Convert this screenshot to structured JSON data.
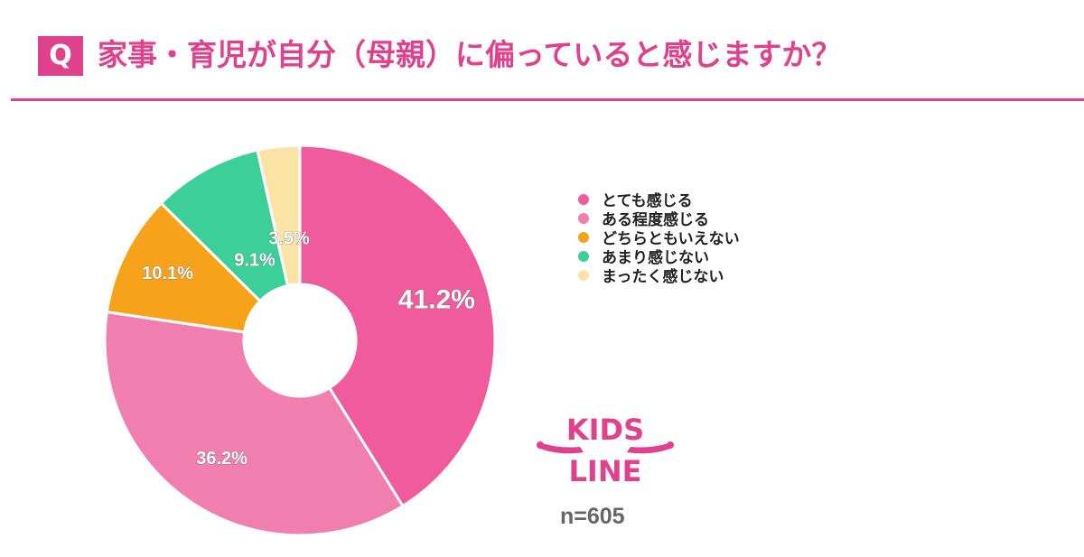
{
  "header": {
    "badge": "Q",
    "title": "家事・育児が自分（母親）に偏っていると感じますか？"
  },
  "chart_data": {
    "type": "pie",
    "categories": [
      "とても感じる",
      "ある程度感じる",
      "どちらともいえない",
      "あまり感じない",
      "まったく感じない"
    ],
    "values": [
      41.2,
      36.2,
      10.1,
      9.1,
      3.5
    ],
    "value_labels": [
      "41.2%",
      "36.2%",
      "10.1%",
      "9.1%",
      "3.5%"
    ],
    "colors": [
      "#ef5b9c",
      "#f07fb0",
      "#f7a21b",
      "#3ccf9a",
      "#fbe3a6"
    ],
    "legend_position": "right",
    "donut": true
  },
  "legend": {
    "items": [
      {
        "label": "とても感じる",
        "color": "#ef5b9c"
      },
      {
        "label": "ある程度感じる",
        "color": "#f07fb0"
      },
      {
        "label": "どちらともいえない",
        "color": "#f7a21b"
      },
      {
        "label": "あまり感じない",
        "color": "#3ccf9a"
      },
      {
        "label": "まったく感じない",
        "color": "#fbe3a6"
      }
    ]
  },
  "logo": {
    "line1": "KIDS",
    "line2": "LINE"
  },
  "footer": {
    "sample": "n=605"
  }
}
